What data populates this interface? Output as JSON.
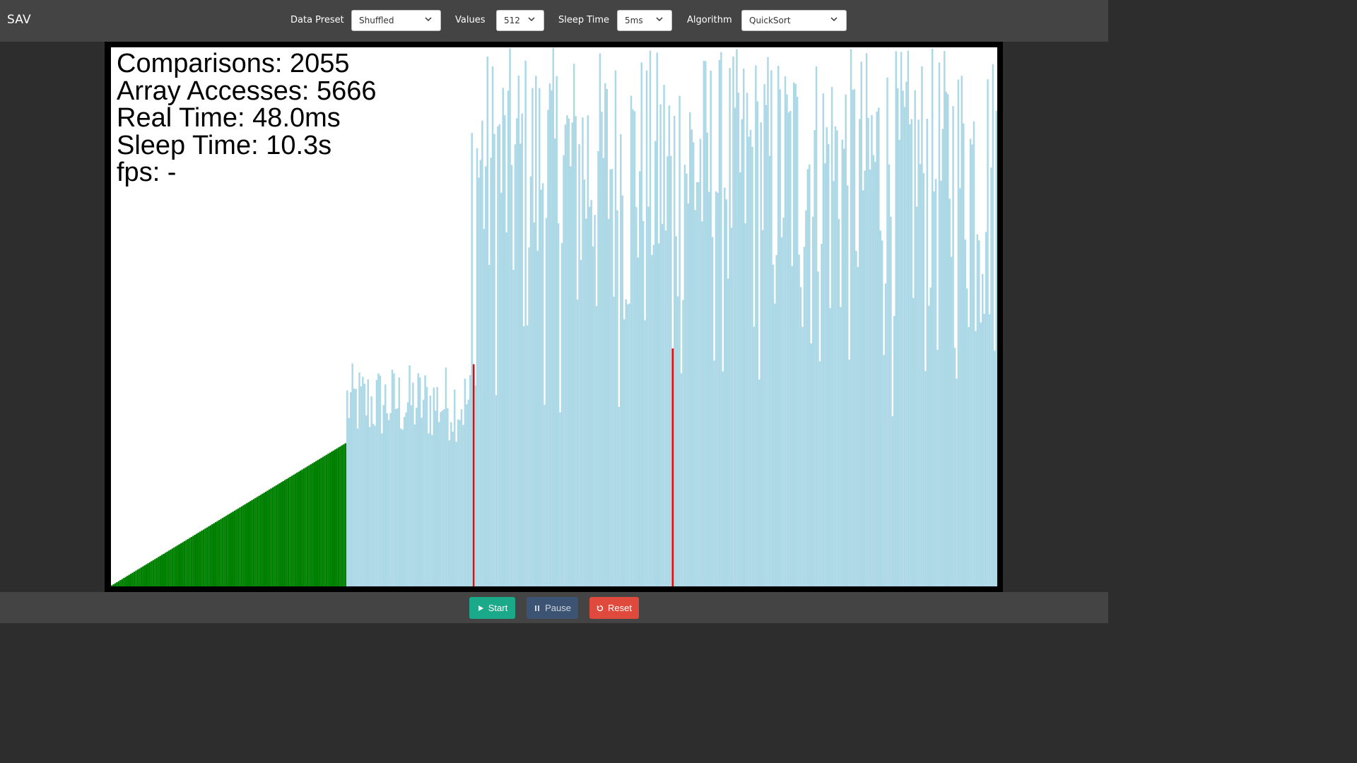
{
  "app": {
    "title": "SAV"
  },
  "controls": {
    "data_preset": {
      "label": "Data Preset",
      "value": "Shuffled"
    },
    "values": {
      "label": "Values",
      "value": "512"
    },
    "sleep_time": {
      "label": "Sleep Time",
      "value": "5ms"
    },
    "algorithm": {
      "label": "Algorithm",
      "value": "QuickSort"
    }
  },
  "stats": {
    "comparisons": "Comparisons: 2055",
    "array_accesses": "Array Accesses: 5666",
    "real_time": "Real Time: 48.0ms",
    "sleep_time": "Sleep Time: 10.3s",
    "fps": "fps: -"
  },
  "buttons": {
    "start": {
      "label": "Start",
      "icon": "play-icon",
      "color": "#1aaa8a"
    },
    "pause": {
      "label": "Pause",
      "icon": "pause-icon",
      "color": "#3c5373"
    },
    "reset": {
      "label": "Reset",
      "icon": "reset-icon",
      "color": "#e04a3c"
    }
  },
  "colors": {
    "sorted": "#008000",
    "unsorted": "#add8e6",
    "highlight": "#ff0000"
  },
  "chart_data": {
    "type": "bar",
    "count": 512,
    "value_max": 512,
    "sorted_count": 136,
    "sorted_values_range": [
      1,
      136
    ],
    "segments": [
      {
        "state": "unsorted",
        "from_index": 136,
        "to_index": 208,
        "value_range": [
          137,
          212
        ]
      },
      {
        "state": "unsorted",
        "from_index": 208,
        "to_index": 512,
        "value_range": [
          137,
          512
        ]
      }
    ],
    "highlighted_indices": [
      209,
      324
    ],
    "highlighted_values": [
      211,
      226
    ]
  }
}
